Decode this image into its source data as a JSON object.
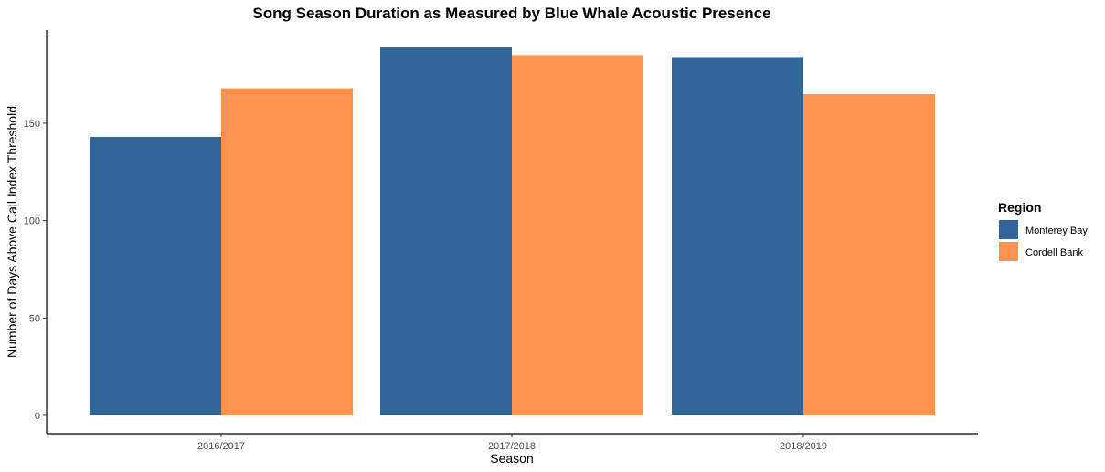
{
  "chart_data": {
    "type": "bar",
    "title": "Song Season Duration as Measured by Blue Whale Acoustic Presence",
    "xlabel": "Season",
    "ylabel": "Number of Days Above Call Index Threshold",
    "categories": [
      "2016/2017",
      "2017/2018",
      "2018/2019"
    ],
    "series": [
      {
        "name": "Monterey Bay",
        "color": "#326699",
        "values": [
          143,
          189,
          184
        ]
      },
      {
        "name": "Cordell Bank",
        "color": "#fe9450",
        "values": [
          168,
          185,
          165
        ]
      }
    ],
    "yticks": [
      0,
      50,
      100,
      150
    ],
    "ylim": [
      0,
      198
    ],
    "grid": false,
    "legend": {
      "title": "Region",
      "placement": "right"
    }
  }
}
